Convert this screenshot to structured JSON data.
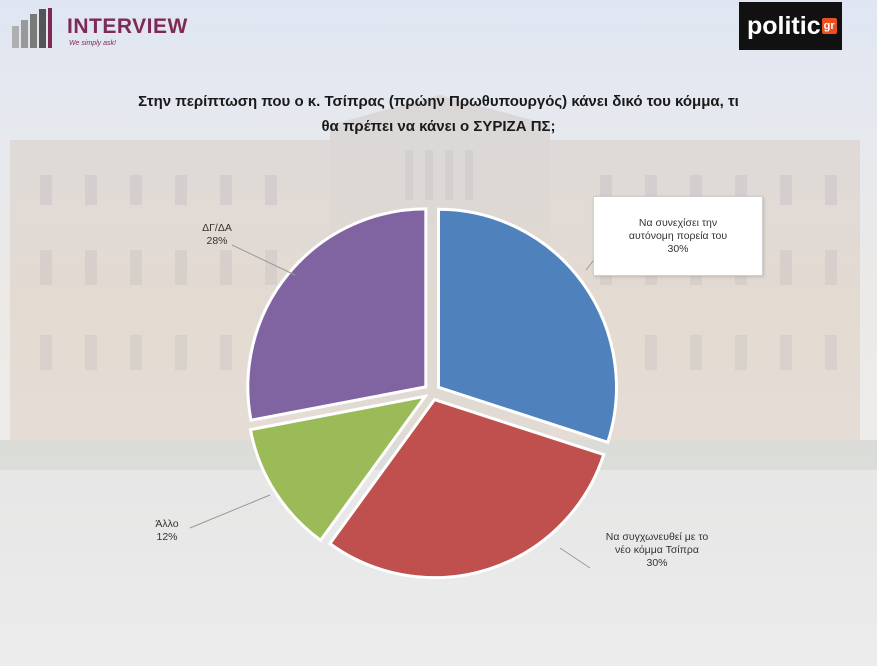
{
  "logos": {
    "interview_brand": "INTERVIEW",
    "interview_tagline": "We simply ask!",
    "politic_text": "politic",
    "politic_suffix": "gr"
  },
  "colors": {
    "slice_1": "#4f81bd",
    "slice_2": "#c0504d",
    "slice_3": "#9bbb59",
    "slice_4": "#8064a2"
  },
  "chart_data": {
    "type": "pie",
    "title": "Στην περίπτωση που ο κ. Τσίπρας (πρώην Πρωθυπουργός) κάνει δικό του κόμμα, τι θα πρέπει να κάνει ο ΣΥΡΙΖΑ ΠΣ;",
    "title_line1": "Στην περίπτωση που ο κ. Τσίπρας (πρώην Πρωθυπουργός) κάνει δικό του κόμμα, τι",
    "title_line2": "θα πρέπει να κάνει ο ΣΥΡΙΖΑ ΠΣ;",
    "slices": [
      {
        "label_line1": "Να συνεχίσει την",
        "label_line2": "αυτόνομη πορεία του",
        "value": 30,
        "value_text": "30%"
      },
      {
        "label_line1": "Να συγχωνευθεί με το",
        "label_line2": "νέο κόμμα Τσίπρα",
        "value": 30,
        "value_text": "30%"
      },
      {
        "label_line1": "Άλλο",
        "label_line2": "",
        "value": 12,
        "value_text": "12%"
      },
      {
        "label_line1": "ΔΓ/ΔΑ",
        "label_line2": "",
        "value": 28,
        "value_text": "28%"
      }
    ],
    "legend": "none"
  }
}
